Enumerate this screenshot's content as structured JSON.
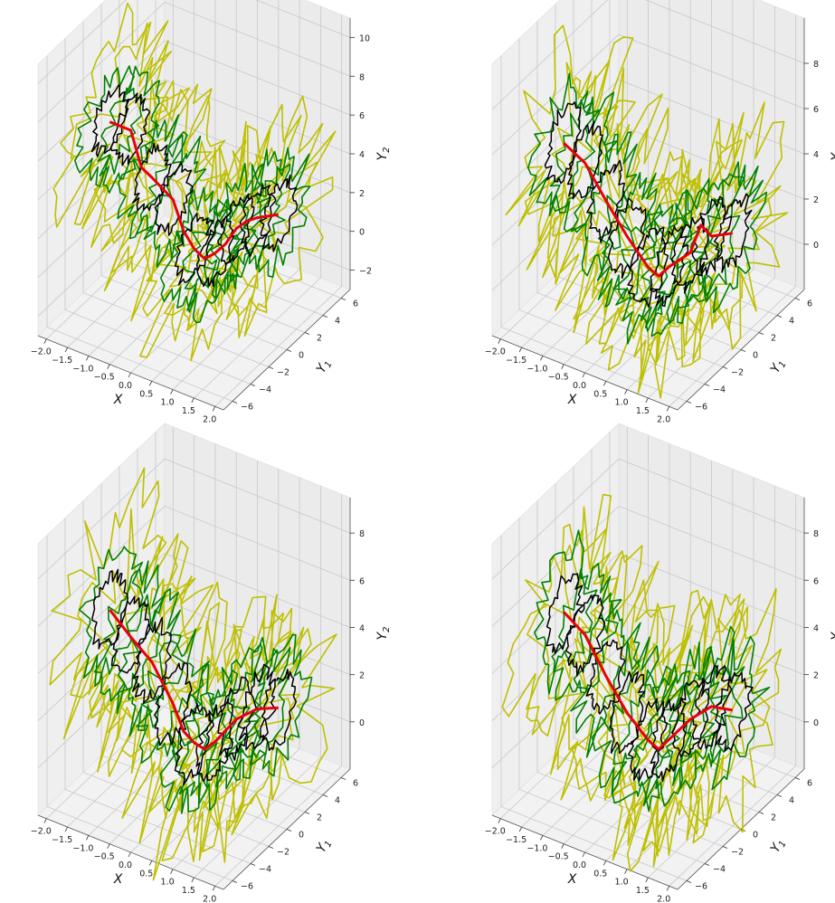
{
  "chart_data": [
    {
      "type": "line3d",
      "panel": "top-left",
      "xlabel": "X",
      "y1label": "Y",
      "y1sub": "1",
      "y2label": "Y",
      "y2sub": "2",
      "xlim": [
        -2.2,
        2.2
      ],
      "y1lim": [
        -7,
        7
      ],
      "y2lim": [
        -3,
        11
      ],
      "xticks": [
        -2.0,
        -1.5,
        -1.0,
        -0.5,
        0.0,
        0.5,
        1.0,
        1.5,
        2.0
      ],
      "xtick_labels": [
        "−2.0",
        "−1.5",
        "−1.0",
        "−0.5",
        "0.0",
        "0.5",
        "1.0",
        "1.5",
        "2.0"
      ],
      "y1ticks": [
        -6,
        -4,
        -2,
        0,
        2,
        4,
        6
      ],
      "y1tick_labels": [
        "−6",
        "−4",
        "−2",
        "0",
        "2",
        "4",
        "6"
      ],
      "y2ticks": [
        -2,
        0,
        2,
        4,
        6,
        8,
        10
      ],
      "y2tick_labels": [
        "−2",
        "0",
        "2",
        "4",
        "6",
        "8",
        "10"
      ],
      "series": [
        {
          "role": "mean",
          "color": "#e8000b",
          "x": [
            -2.0,
            -1.5,
            -1.25,
            -1.0,
            -0.5,
            -0.25,
            0.0,
            0.25,
            0.5,
            0.75,
            1.0,
            1.25,
            1.5,
            2.0
          ],
          "y2": [
            5.1,
            5.1,
            3.4,
            3.1,
            2.4,
            1.0,
            0.3,
            0.0,
            0.5,
            1.2,
            2.2,
            2.8,
            3.2,
            3.8
          ]
        }
      ],
      "contour_colors": [
        "#000000",
        "#008000",
        "#bfbf00"
      ],
      "seed": 7
    },
    {
      "type": "line3d",
      "panel": "top-right",
      "xlabel": "X",
      "y1label": "Y",
      "y1sub": "1",
      "y2label": "Y",
      "y2sub": "2",
      "xlim": [
        -2.2,
        2.2
      ],
      "y1lim": [
        -7,
        7
      ],
      "y2lim": [
        -2,
        10
      ],
      "xticks": [
        -2.0,
        -1.5,
        -1.0,
        -0.5,
        0.0,
        0.5,
        1.0,
        1.5,
        2.0
      ],
      "xtick_labels": [
        "−2.0",
        "−1.5",
        "−1.0",
        "−0.5",
        "0.0",
        "0.5",
        "1.0",
        "1.5",
        "2.0"
      ],
      "y1ticks": [
        -6,
        -4,
        -2,
        0,
        2,
        4,
        6
      ],
      "y1tick_labels": [
        "−6",
        "−4",
        "−2",
        "0",
        "2",
        "4",
        "6"
      ],
      "y2ticks": [
        0,
        2,
        4,
        6,
        8
      ],
      "y2tick_labels": [
        "0",
        "2",
        "4",
        "6",
        "8"
      ],
      "series": [
        {
          "role": "mean",
          "color": "#e8000b",
          "x": [
            -2.0,
            -1.5,
            -1.0,
            -0.5,
            0.0,
            0.25,
            0.5,
            1.0,
            1.25,
            1.5,
            2.0
          ],
          "y2": [
            4.0,
            3.5,
            2.2,
            1.0,
            0.0,
            -0.2,
            0.4,
            1.4,
            2.8,
            2.5,
            3.0
          ]
        }
      ],
      "contour_colors": [
        "#000000",
        "#008000",
        "#bfbf00"
      ],
      "seed": 19
    },
    {
      "type": "line3d",
      "panel": "bottom-left",
      "xlabel": "X",
      "y1label": "Y",
      "y1sub": "1",
      "y2label": "Y",
      "y2sub": "2",
      "xlim": [
        -2.2,
        2.2
      ],
      "y1lim": [
        -7,
        7
      ],
      "y2lim": [
        -2,
        9.5
      ],
      "xticks": [
        -2.0,
        -1.5,
        -1.0,
        -0.5,
        0.0,
        0.5,
        1.0,
        1.5,
        2.0
      ],
      "xtick_labels": [
        "−2.0",
        "−1.5",
        "−1.0",
        "−0.5",
        "0.0",
        "0.5",
        "1.0",
        "1.5",
        "2.0"
      ],
      "y1ticks": [
        -6,
        -4,
        -2,
        0,
        2,
        4,
        6
      ],
      "y1tick_labels": [
        "−6",
        "−4",
        "−2",
        "0",
        "2",
        "4",
        "6"
      ],
      "y2ticks": [
        0,
        2,
        4,
        6,
        8
      ],
      "y2tick_labels": [
        "0",
        "2",
        "4",
        "6",
        "8"
      ],
      "series": [
        {
          "role": "mean",
          "color": "#e8000b",
          "x": [
            -2.0,
            -1.5,
            -1.0,
            -0.5,
            -0.25,
            0.0,
            0.25,
            0.5,
            1.0,
            1.5,
            2.0
          ],
          "y2": [
            4.3,
            3.5,
            2.8,
            1.4,
            0.4,
            0.1,
            0.0,
            0.5,
            1.8,
            2.6,
            3.0
          ]
        }
      ],
      "contour_colors": [
        "#000000",
        "#008000",
        "#bfbf00"
      ],
      "seed": 31
    },
    {
      "type": "line3d",
      "panel": "bottom-right",
      "xlabel": "X",
      "y1label": "Y",
      "y1sub": "1",
      "y2label": "Y",
      "y2sub": "2",
      "xlim": [
        -2.2,
        2.2
      ],
      "y1lim": [
        -7,
        7
      ],
      "y2lim": [
        -2,
        9.5
      ],
      "xticks": [
        -2.0,
        -1.5,
        -1.0,
        -0.5,
        0.0,
        0.5,
        1.0,
        1.5,
        2.0
      ],
      "xtick_labels": [
        "−2.0",
        "−1.5",
        "−1.0",
        "−0.5",
        "0.0",
        "0.5",
        "1.0",
        "1.5",
        "2.0"
      ],
      "y1ticks": [
        -6,
        -4,
        -2,
        0,
        2,
        4,
        6
      ],
      "y1tick_labels": [
        "−6",
        "−4",
        "−2",
        "0",
        "2",
        "4",
        "6"
      ],
      "y2ticks": [
        0,
        2,
        4,
        6,
        8
      ],
      "y2tick_labels": [
        "0",
        "2",
        "4",
        "6",
        "8"
      ],
      "series": [
        {
          "role": "mean",
          "color": "#e8000b",
          "x": [
            -2.0,
            -1.5,
            -1.0,
            -0.5,
            0.0,
            0.25,
            0.5,
            1.0,
            1.5,
            2.0
          ],
          "y2": [
            4.2,
            3.6,
            2.2,
            1.0,
            0.2,
            0.0,
            0.6,
            1.8,
            2.7,
            2.9
          ]
        }
      ],
      "contour_colors": [
        "#000000",
        "#008000",
        "#bfbf00"
      ],
      "seed": 53
    }
  ]
}
